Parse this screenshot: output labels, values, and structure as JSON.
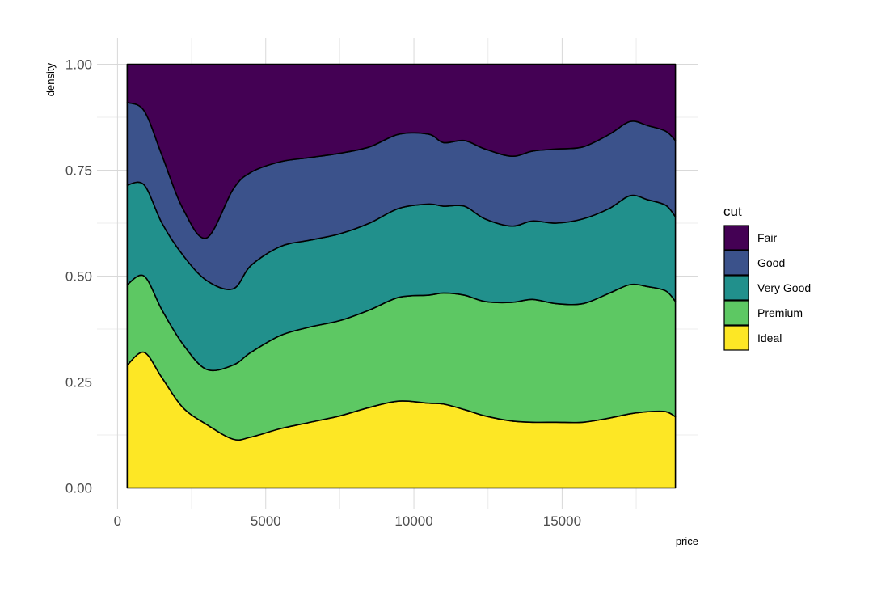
{
  "chart_data": {
    "type": "area",
    "stacked": "fill",
    "xlabel": "price",
    "ylabel": "density",
    "xlim": [
      0,
      19300
    ],
    "ylim": [
      0,
      1
    ],
    "x_ticks": [
      0,
      5000,
      10000,
      15000
    ],
    "x_tick_labels": [
      "0",
      "5000",
      "10000",
      "15000"
    ],
    "y_ticks": [
      0,
      0.25,
      0.5,
      0.75,
      1.0
    ],
    "y_tick_labels": [
      "0.00",
      "0.25",
      "0.50",
      "0.75",
      "1.00"
    ],
    "grid": true,
    "legend": {
      "title": "cut",
      "position": "right"
    },
    "x": [
      326,
      900,
      1500,
      2200,
      3000,
      3900,
      4500,
      5500,
      6500,
      7500,
      8500,
      9500,
      10500,
      11000,
      11700,
      12400,
      13300,
      14000,
      14800,
      15700,
      16600,
      17300,
      17900,
      18500,
      18823
    ],
    "series": [
      {
        "name": "Ideal",
        "color": "#FDE725",
        "values": [
          0.29,
          0.32,
          0.26,
          0.19,
          0.15,
          0.115,
          0.12,
          0.14,
          0.155,
          0.17,
          0.19,
          0.205,
          0.2,
          0.198,
          0.185,
          0.17,
          0.158,
          0.155,
          0.155,
          0.155,
          0.165,
          0.175,
          0.18,
          0.18,
          0.168
        ]
      },
      {
        "name": "Premium",
        "color": "#5DC863",
        "values": [
          0.19,
          0.18,
          0.16,
          0.15,
          0.13,
          0.175,
          0.2,
          0.22,
          0.225,
          0.225,
          0.23,
          0.245,
          0.255,
          0.262,
          0.27,
          0.27,
          0.28,
          0.29,
          0.28,
          0.28,
          0.295,
          0.305,
          0.295,
          0.285,
          0.272
        ]
      },
      {
        "name": "Very Good",
        "color": "#21908C",
        "values": [
          0.235,
          0.215,
          0.205,
          0.21,
          0.21,
          0.18,
          0.205,
          0.21,
          0.205,
          0.205,
          0.205,
          0.21,
          0.215,
          0.205,
          0.21,
          0.195,
          0.18,
          0.185,
          0.19,
          0.2,
          0.2,
          0.21,
          0.205,
          0.202,
          0.2
        ]
      },
      {
        "name": "Good",
        "color": "#3B528B",
        "values": [
          0.195,
          0.175,
          0.16,
          0.11,
          0.1,
          0.235,
          0.22,
          0.2,
          0.195,
          0.19,
          0.18,
          0.175,
          0.165,
          0.15,
          0.155,
          0.165,
          0.165,
          0.165,
          0.175,
          0.17,
          0.175,
          0.175,
          0.175,
          0.175,
          0.18
        ]
      },
      {
        "name": "Fair",
        "color": "#440154",
        "values": [
          0.09,
          0.11,
          0.215,
          0.34,
          0.41,
          0.295,
          0.255,
          0.23,
          0.22,
          0.21,
          0.195,
          0.165,
          0.165,
          0.185,
          0.18,
          0.2,
          0.217,
          0.205,
          0.2,
          0.195,
          0.165,
          0.135,
          0.145,
          0.158,
          0.18
        ]
      }
    ]
  }
}
